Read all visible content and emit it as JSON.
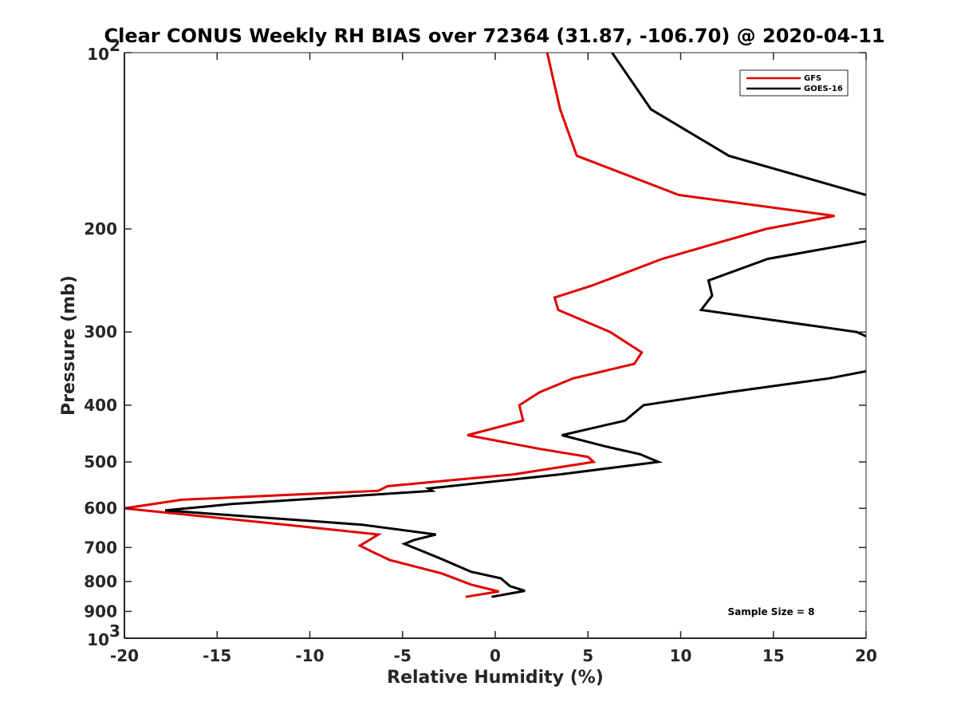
{
  "chart_data": {
    "type": "line",
    "title": "Clear CONUS Weekly RH BIAS over 72364 (31.87, -106.70) @ 2020-04-11",
    "xlabel": "Relative Humidity (%)",
    "ylabel": "Pressure (mb)",
    "xlim": [
      -20,
      20
    ],
    "ylim": [
      1000,
      100
    ],
    "y_scale": "log",
    "y_reversed": true,
    "grid": false,
    "legend_position": "top-right",
    "x_ticks": [
      {
        "value": -20,
        "label": "-20"
      },
      {
        "value": -15,
        "label": "-15"
      },
      {
        "value": -10,
        "label": "-10"
      },
      {
        "value": -5,
        "label": "-5"
      },
      {
        "value": 0,
        "label": "0"
      },
      {
        "value": 5,
        "label": "5"
      },
      {
        "value": 10,
        "label": "10"
      },
      {
        "value": 15,
        "label": "15"
      },
      {
        "value": 20,
        "label": "20"
      }
    ],
    "y_ticks": [
      {
        "value": 100,
        "base": "10",
        "exp": "2"
      },
      {
        "value": 200,
        "base": "200",
        "exp": ""
      },
      {
        "value": 300,
        "base": "300",
        "exp": ""
      },
      {
        "value": 400,
        "base": "400",
        "exp": ""
      },
      {
        "value": 500,
        "base": "500",
        "exp": ""
      },
      {
        "value": 600,
        "base": "600",
        "exp": ""
      },
      {
        "value": 700,
        "base": "700",
        "exp": ""
      },
      {
        "value": 800,
        "base": "800",
        "exp": ""
      },
      {
        "value": 900,
        "base": "900",
        "exp": ""
      },
      {
        "value": 1000,
        "base": "10",
        "exp": "3"
      }
    ],
    "series": [
      {
        "name": "GFS",
        "color": "#e00000",
        "points": [
          [
            2.8,
            100
          ],
          [
            3.5,
            125
          ],
          [
            4.4,
            150
          ],
          [
            9.9,
            175
          ],
          [
            18.3,
            190
          ],
          [
            14.6,
            200
          ],
          [
            9.0,
            225
          ],
          [
            5.2,
            250
          ],
          [
            3.2,
            262
          ],
          [
            3.4,
            275
          ],
          [
            6.2,
            300
          ],
          [
            7.9,
            325
          ],
          [
            7.5,
            340
          ],
          [
            4.2,
            360
          ],
          [
            2.4,
            380
          ],
          [
            1.3,
            400
          ],
          [
            1.5,
            425
          ],
          [
            -1.5,
            450
          ],
          [
            2.4,
            475
          ],
          [
            5.0,
            490
          ],
          [
            5.3,
            500
          ],
          [
            1.0,
            525
          ],
          [
            -5.8,
            550
          ],
          [
            -6.3,
            560
          ],
          [
            -16.9,
            580
          ],
          [
            -20.0,
            600
          ],
          [
            -11.3,
            640
          ],
          [
            -6.3,
            665
          ],
          [
            -7.3,
            695
          ],
          [
            -6.5,
            715
          ],
          [
            -5.7,
            735
          ],
          [
            -2.9,
            775
          ],
          [
            -1.3,
            810
          ],
          [
            0.2,
            832
          ],
          [
            -1.6,
            850
          ]
        ]
      },
      {
        "name": "GOES-16",
        "color": "#000000",
        "points": [
          [
            6.3,
            100
          ],
          [
            8.4,
            125
          ],
          [
            12.6,
            150
          ],
          [
            20.0,
            175
          ],
          [
            null,
            190
          ],
          [
            20.0,
            210
          ],
          [
            14.7,
            225
          ],
          [
            11.5,
            245
          ],
          [
            11.7,
            260
          ],
          [
            11.1,
            275
          ],
          [
            19.5,
            300
          ],
          [
            20.0,
            305
          ],
          [
            null,
            320
          ],
          [
            20.0,
            350
          ],
          [
            18.0,
            360
          ],
          [
            12.6,
            380
          ],
          [
            8.0,
            400
          ],
          [
            7.0,
            425
          ],
          [
            3.6,
            450
          ],
          [
            5.9,
            470
          ],
          [
            7.8,
            485
          ],
          [
            8.8,
            500
          ],
          [
            3.5,
            525
          ],
          [
            -3.6,
            555
          ],
          [
            -3.4,
            560
          ],
          [
            -14.2,
            590
          ],
          [
            -17.8,
            605
          ],
          [
            -7.2,
            640
          ],
          [
            -3.2,
            665
          ],
          [
            -4.4,
            680
          ],
          [
            -4.9,
            690
          ],
          [
            -3.0,
            730
          ],
          [
            -1.3,
            770
          ],
          [
            0.3,
            790
          ],
          [
            0.8,
            815
          ],
          [
            1.6,
            830
          ],
          [
            -0.2,
            850
          ]
        ]
      }
    ],
    "annotations": [
      "Sample Size = 8"
    ]
  }
}
